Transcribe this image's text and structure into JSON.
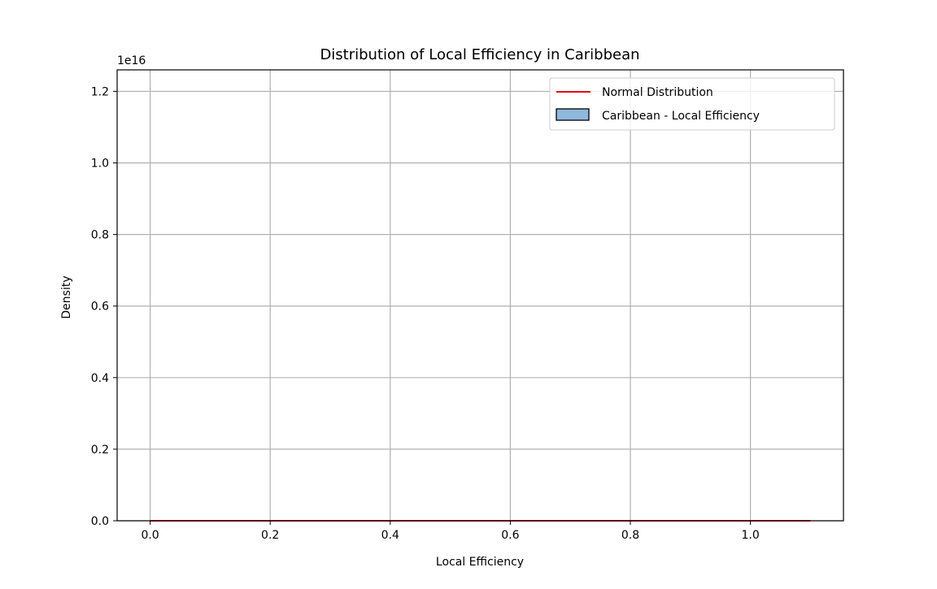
{
  "chart_data": {
    "type": "histogram",
    "title": "Distribution of Local Efficiency in Caribbean",
    "xlabel": "Local Efficiency",
    "ylabel": "Density",
    "y_offset_text": "1e16",
    "xlim": [
      -0.055,
      1.155
    ],
    "ylim": [
      0,
      1.26
    ],
    "xticks": [
      0.0,
      0.2,
      0.4,
      0.6,
      0.8,
      1.0
    ],
    "xtick_labels": [
      "0.0",
      "0.2",
      "0.4",
      "0.6",
      "0.8",
      "1.0"
    ],
    "yticks": [
      0.0,
      0.2,
      0.4,
      0.6,
      0.8,
      1.0,
      1.2
    ],
    "ytick_labels": [
      "0.0",
      "0.2",
      "0.4",
      "0.6",
      "0.8",
      "1.0",
      "1.2"
    ],
    "grid": true,
    "legend_position": "upper right",
    "series": [
      {
        "name": "Normal Distribution",
        "kind": "line",
        "color": "#e8000b",
        "x": [
          0.0,
          1.1
        ],
        "y": [
          0,
          0
        ]
      },
      {
        "name": "Caribbean - Local Efficiency",
        "kind": "histogram",
        "color": "#8fb8dd",
        "edge_color": "#000000",
        "bins": [],
        "values": []
      }
    ]
  }
}
